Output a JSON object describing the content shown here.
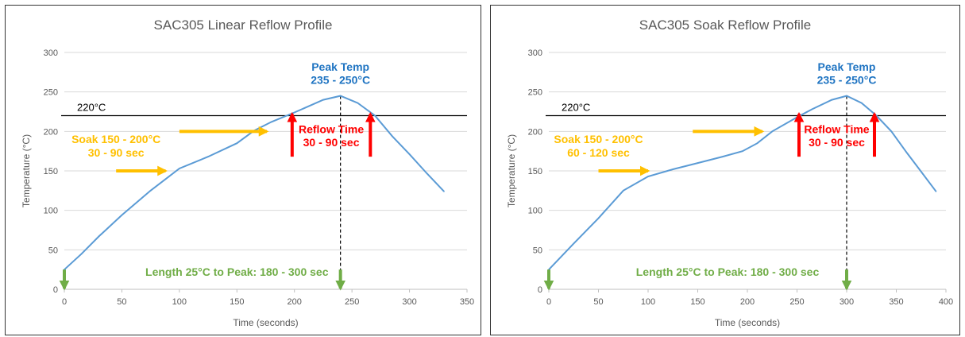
{
  "chart_data": [
    {
      "type": "line",
      "title": "SAC305 Linear Reflow Profile",
      "xlabel": "Time (seconds)",
      "ylabel": "Temperature (°C)",
      "xlim": [
        0,
        350
      ],
      "ylim": [
        0,
        300
      ],
      "xticks": [
        0,
        50,
        100,
        150,
        200,
        250,
        300,
        350
      ],
      "yticks": [
        0,
        50,
        100,
        150,
        200,
        250,
        300
      ],
      "grid": "horizontal",
      "series": [
        {
          "color": "#5B9BD5",
          "x": [
            0,
            15,
            30,
            50,
            75,
            100,
            125,
            150,
            165,
            180,
            200,
            225,
            240,
            255,
            270,
            285,
            300,
            315,
            330
          ],
          "y": [
            25,
            45,
            67,
            94,
            125,
            153,
            168,
            185,
            201,
            212,
            224,
            240,
            245,
            236,
            220,
            194,
            171,
            147,
            124
          ]
        }
      ],
      "hline": {
        "y": 220,
        "label": "220°C"
      },
      "peak_line_x": 240,
      "annotations": {
        "peak": [
          "Peak Temp",
          "235 - 250°C"
        ],
        "soak": [
          "Soak 150 - 200°C",
          "30 - 90 sec"
        ],
        "reflow": [
          "Reflow Time",
          "30 - 90 sec"
        ],
        "length": "Length 25°C to Peak:  180 - 300 sec"
      }
    },
    {
      "type": "line",
      "title": "SAC305 Soak Reflow Profile",
      "xlabel": "Time (seconds)",
      "ylabel": "Temperature (°C)",
      "xlim": [
        0,
        400
      ],
      "ylim": [
        0,
        300
      ],
      "xticks": [
        0,
        50,
        100,
        150,
        200,
        250,
        300,
        350,
        400
      ],
      "yticks": [
        0,
        50,
        100,
        150,
        200,
        250,
        300
      ],
      "grid": "horizontal",
      "series": [
        {
          "color": "#5B9BD5",
          "x": [
            0,
            25,
            50,
            75,
            100,
            125,
            150,
            175,
            195,
            210,
            225,
            250,
            265,
            285,
            300,
            315,
            330,
            345,
            360,
            375,
            390
          ],
          "y": [
            25,
            58,
            90,
            125,
            143,
            152,
            160,
            168,
            175,
            185,
            200,
            218,
            228,
            240,
            245,
            236,
            220,
            200,
            174,
            149,
            124
          ]
        }
      ],
      "hline": {
        "y": 220,
        "label": "220°C"
      },
      "peak_line_x": 300,
      "annotations": {
        "peak": [
          "Peak Temp",
          "235 - 250°C"
        ],
        "soak": [
          "Soak 150 - 200°C",
          "60 - 120 sec"
        ],
        "reflow": [
          "Reflow Time",
          "30 - 90 sec"
        ],
        "length": "Length 25°C to Peak:  180 - 300 sec"
      }
    }
  ],
  "colors": {
    "series": "#5B9BD5",
    "grid": "#D9D9D9",
    "axis": "#BFBFBF",
    "text": "#595959",
    "peak": "#1F74C2",
    "soak": "#FFC000",
    "reflow": "#FF0000",
    "length": "#70AD47",
    "hline": "#000000"
  }
}
